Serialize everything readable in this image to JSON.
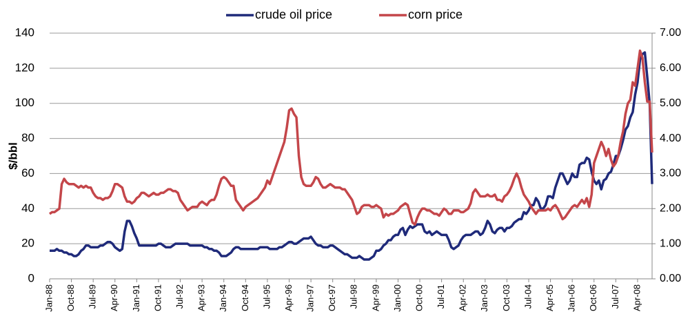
{
  "chart_data": {
    "type": "line",
    "y_label": "$/bbl",
    "categories": [
      "Jan-88",
      null,
      null,
      null,
      null,
      null,
      null,
      null,
      null,
      "Oct-88",
      null,
      null,
      null,
      null,
      null,
      null,
      null,
      null,
      "Jul-89",
      null,
      null,
      null,
      null,
      null,
      null,
      null,
      null,
      "Apr-90",
      null,
      null,
      null,
      null,
      null,
      null,
      null,
      null,
      "Jan-91",
      null,
      null,
      null,
      null,
      null,
      null,
      null,
      null,
      "Oct-91",
      null,
      null,
      null,
      null,
      null,
      null,
      null,
      null,
      "Jul-92",
      null,
      null,
      null,
      null,
      null,
      null,
      null,
      null,
      "Apr-93",
      null,
      null,
      null,
      null,
      null,
      null,
      null,
      null,
      "Jan-94",
      null,
      null,
      null,
      null,
      null,
      null,
      null,
      null,
      "Oct-94",
      null,
      null,
      null,
      null,
      null,
      null,
      null,
      null,
      "Jul-95",
      null,
      null,
      null,
      null,
      null,
      null,
      null,
      null,
      "Apr-96",
      null,
      null,
      null,
      null,
      null,
      null,
      null,
      null,
      "Jan-97",
      null,
      null,
      null,
      null,
      null,
      null,
      null,
      null,
      "Oct-97",
      null,
      null,
      null,
      null,
      null,
      null,
      null,
      null,
      "Jul-98",
      null,
      null,
      null,
      null,
      null,
      null,
      null,
      null,
      "Apr-99",
      null,
      null,
      null,
      null,
      null,
      null,
      null,
      null,
      "Jan-00",
      null,
      null,
      null,
      null,
      null,
      null,
      null,
      null,
      "Oct-00",
      null,
      null,
      null,
      null,
      null,
      null,
      null,
      null,
      "Jul-01",
      null,
      null,
      null,
      null,
      null,
      null,
      null,
      null,
      "Apr-02",
      null,
      null,
      null,
      null,
      null,
      null,
      null,
      null,
      "Jan-03",
      null,
      null,
      null,
      null,
      null,
      null,
      null,
      null,
      "Oct-03",
      null,
      null,
      null,
      null,
      null,
      null,
      null,
      null,
      "Jul-04",
      null,
      null,
      null,
      null,
      null,
      null,
      null,
      null,
      "Apr-05",
      null,
      null,
      null,
      null,
      null,
      null,
      null,
      null,
      "Jan-06",
      null,
      null,
      null,
      null,
      null,
      null,
      null,
      null,
      "Oct-06",
      null,
      null,
      null,
      null,
      null,
      null,
      null,
      null,
      "Jul-07",
      null,
      null,
      null,
      null,
      null,
      null,
      null,
      null,
      "Apr-08",
      null,
      null,
      null,
      null,
      null,
      null
    ],
    "series": [
      {
        "name": "crude oil price",
        "color": "#1f2a7a",
        "values": [
          16,
          16,
          16,
          17,
          16,
          16,
          15,
          15,
          14,
          14,
          13,
          13,
          14,
          16,
          17,
          19,
          19,
          18,
          18,
          18,
          18,
          19,
          19,
          20,
          21,
          21,
          20,
          18,
          17,
          16,
          17,
          27,
          33,
          33,
          30,
          26,
          23,
          19,
          19,
          19,
          19,
          19,
          19,
          19,
          19,
          20,
          20,
          19,
          18,
          18,
          18,
          19,
          20,
          20,
          20,
          20,
          20,
          20,
          19,
          19,
          19,
          19,
          19,
          19,
          18,
          18,
          17,
          17,
          16,
          16,
          15,
          13,
          13,
          13,
          14,
          15,
          17,
          18,
          18,
          17,
          17,
          17,
          17,
          17,
          17,
          17,
          17,
          18,
          18,
          18,
          18,
          17,
          17,
          17,
          17,
          18,
          18,
          19,
          20,
          21,
          21,
          20,
          20,
          21,
          22,
          23,
          23,
          23,
          24,
          22,
          20,
          19,
          19,
          18,
          18,
          18,
          19,
          19,
          18,
          17,
          16,
          15,
          14,
          14,
          13,
          12,
          12,
          12,
          13,
          12,
          11,
          11,
          11,
          12,
          13,
          16,
          16,
          17,
          19,
          20,
          22,
          22,
          24,
          25,
          25,
          28,
          29,
          25,
          28,
          30,
          29,
          30,
          31,
          31,
          31,
          27,
          26,
          27,
          25,
          26,
          27,
          26,
          25,
          25,
          25,
          22,
          18,
          17,
          18,
          19,
          22,
          24,
          25,
          25,
          25,
          26,
          27,
          27,
          25,
          26,
          29,
          33,
          31,
          27,
          26,
          28,
          29,
          29,
          27,
          29,
          29,
          30,
          32,
          33,
          34,
          34,
          38,
          37,
          39,
          42,
          42,
          46,
          44,
          40,
          40,
          42,
          47,
          47,
          46,
          52,
          56,
          60,
          60,
          57,
          54,
          56,
          60,
          58,
          58,
          65,
          66,
          66,
          69,
          68,
          61,
          56,
          54,
          56,
          51,
          56,
          57,
          60,
          61,
          65,
          70,
          70,
          74,
          79,
          85,
          87,
          92,
          95,
          105,
          112,
          125,
          128,
          129,
          115,
          100,
          54
        ]
      },
      {
        "name": "corn price",
        "color": "#c4464a",
        "axis": "y2",
        "values": [
          1.85,
          1.9,
          1.9,
          1.95,
          2.0,
          2.7,
          2.85,
          2.75,
          2.7,
          2.7,
          2.7,
          2.65,
          2.6,
          2.65,
          2.6,
          2.65,
          2.6,
          2.6,
          2.45,
          2.35,
          2.3,
          2.3,
          2.25,
          2.3,
          2.3,
          2.35,
          2.5,
          2.7,
          2.7,
          2.65,
          2.6,
          2.35,
          2.2,
          2.2,
          2.15,
          2.2,
          2.3,
          2.35,
          2.45,
          2.45,
          2.4,
          2.35,
          2.4,
          2.45,
          2.4,
          2.4,
          2.45,
          2.45,
          2.5,
          2.55,
          2.55,
          2.5,
          2.5,
          2.45,
          2.25,
          2.15,
          2.05,
          1.95,
          2.0,
          2.05,
          2.05,
          2.05,
          2.15,
          2.2,
          2.15,
          2.1,
          2.2,
          2.25,
          2.25,
          2.4,
          2.65,
          2.85,
          2.9,
          2.85,
          2.75,
          2.65,
          2.65,
          2.25,
          2.15,
          2.05,
          1.95,
          2.05,
          2.1,
          2.15,
          2.2,
          2.25,
          2.3,
          2.4,
          2.5,
          2.6,
          2.8,
          2.7,
          2.9,
          3.1,
          3.3,
          3.5,
          3.7,
          3.9,
          4.3,
          4.8,
          4.85,
          4.7,
          4.6,
          3.5,
          2.9,
          2.7,
          2.65,
          2.65,
          2.65,
          2.75,
          2.9,
          2.85,
          2.7,
          2.6,
          2.6,
          2.65,
          2.7,
          2.65,
          2.6,
          2.6,
          2.6,
          2.55,
          2.55,
          2.45,
          2.35,
          2.25,
          2.05,
          1.85,
          1.9,
          2.05,
          2.1,
          2.1,
          2.1,
          2.05,
          2.05,
          2.1,
          2.05,
          2.0,
          1.75,
          1.85,
          1.8,
          1.85,
          1.85,
          1.9,
          1.95,
          2.05,
          2.1,
          2.15,
          2.1,
          1.85,
          1.6,
          1.55,
          1.75,
          1.9,
          2.0,
          2.0,
          1.95,
          1.95,
          1.9,
          1.85,
          1.85,
          1.8,
          1.9,
          2.0,
          1.95,
          1.85,
          1.85,
          1.95,
          1.95,
          1.95,
          1.9,
          1.9,
          1.95,
          2.0,
          2.15,
          2.45,
          2.55,
          2.45,
          2.35,
          2.35,
          2.35,
          2.4,
          2.35,
          2.35,
          2.4,
          2.25,
          2.25,
          2.2,
          2.35,
          2.4,
          2.5,
          2.65,
          2.85,
          3.0,
          2.85,
          2.6,
          2.4,
          2.3,
          2.2,
          2.05,
          1.95,
          1.85,
          1.95,
          1.95,
          1.95,
          1.95,
          2.0,
          1.95,
          2.05,
          2.1,
          2.0,
          1.85,
          1.7,
          1.75,
          1.85,
          1.95,
          2.05,
          2.1,
          2.05,
          2.15,
          2.25,
          2.15,
          2.3,
          2.05,
          2.4,
          3.3,
          3.5,
          3.7,
          3.9,
          3.75,
          3.5,
          3.7,
          3.4,
          3.2,
          3.3,
          3.5,
          3.9,
          4.2,
          4.7,
          5.0,
          5.1,
          5.6,
          5.5,
          6.0,
          6.5,
          6.3,
          5.6,
          5.05,
          5.05,
          3.6
        ]
      }
    ],
    "ylim": [
      0,
      140
    ],
    "yticks": [
      0,
      20,
      40,
      60,
      80,
      100,
      120,
      140
    ],
    "y2lim": [
      0,
      7
    ],
    "y2ticks": [
      {
        "value": 0,
        "label": "0.00"
      },
      {
        "value": 1,
        "label": "1.00"
      },
      {
        "value": 2,
        "label": "2.00"
      },
      {
        "value": 3,
        "label": "3.00"
      },
      {
        "value": 4,
        "label": "4.00"
      },
      {
        "value": 5,
        "label": "5.00"
      },
      {
        "value": 6,
        "label": "6.00"
      },
      {
        "value": 7,
        "label": "7.00"
      }
    ],
    "grid": true,
    "legend": "top"
  }
}
